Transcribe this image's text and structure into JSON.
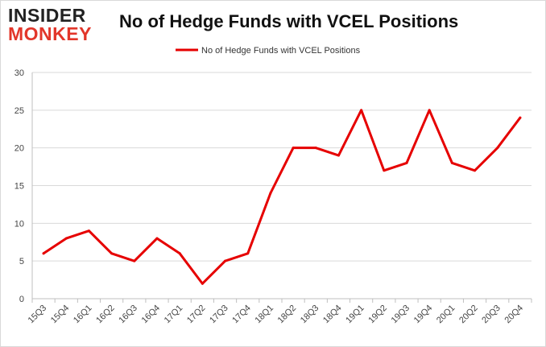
{
  "logo": {
    "line1": "INSIDER",
    "line2": "MONKEY"
  },
  "colors": {
    "series": "#e60000",
    "grid": "#d9d9d9",
    "axis": "#bfbfbf"
  },
  "chart_data": {
    "type": "line",
    "title": "No of Hedge Funds with VCEL Positions",
    "xlabel": "",
    "ylabel": "",
    "ylim": [
      0,
      30
    ],
    "yticks": [
      0,
      5,
      10,
      15,
      20,
      25,
      30
    ],
    "grid": true,
    "legend_position": "top-center",
    "categories": [
      "15Q3",
      "15Q4",
      "16Q1",
      "16Q2",
      "16Q3",
      "16Q4",
      "17Q1",
      "17Q2",
      "17Q3",
      "17Q4",
      "18Q1",
      "18Q2",
      "18Q3",
      "18Q4",
      "19Q1",
      "19Q2",
      "19Q3",
      "19Q4",
      "20Q1",
      "20Q2",
      "20Q3",
      "20Q4"
    ],
    "series": [
      {
        "name": "No of Hedge Funds with VCEL Positions",
        "color": "#e60000",
        "values": [
          6,
          8,
          9,
          6,
          5,
          8,
          6,
          2,
          5,
          6,
          14,
          20,
          20,
          19,
          25,
          17,
          18,
          25,
          18,
          17,
          20,
          24
        ]
      }
    ]
  }
}
